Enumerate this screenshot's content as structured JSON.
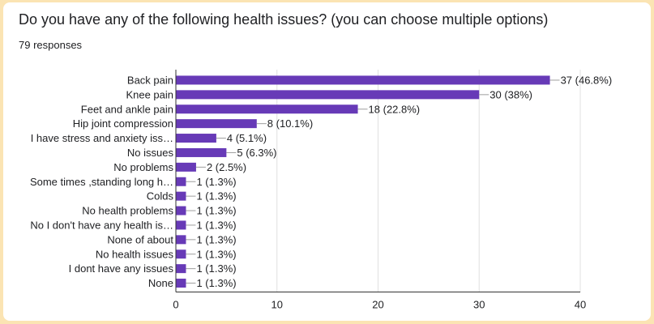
{
  "header": {
    "title": "Do you have any of the following health issues? (you can choose multiple options)",
    "responses": "79 responses"
  },
  "colors": {
    "bar": "#673ab7",
    "background": "#fbe4b3",
    "gridline": "#e0e0e0",
    "axis": "#333333"
  },
  "chart_data": {
    "type": "bar",
    "orientation": "horizontal",
    "title": "Do you have any of the following health issues? (you can choose multiple options)",
    "subtitle": "79 responses",
    "categories": [
      "Back pain",
      "Knee pain",
      "Feet and ankle pain",
      "Hip joint compression",
      "I have stress and anxiety iss…",
      "No issues",
      "No problems",
      "Some times ,standing long h…",
      "Colds",
      "No health problems",
      "No I don't have any health is…",
      "None of about",
      "No health issues",
      "I dont have any issues",
      "None"
    ],
    "values": [
      37,
      30,
      18,
      8,
      4,
      5,
      2,
      1,
      1,
      1,
      1,
      1,
      1,
      1,
      1
    ],
    "value_labels": [
      "37 (46.8%)",
      "30 (38%)",
      "18 (22.8%)",
      "8 (10.1%)",
      "4 (5.1%)",
      "5 (6.3%)",
      "2 (2.5%)",
      "1 (1.3%)",
      "1 (1.3%)",
      "1 (1.3%)",
      "1 (1.3%)",
      "1 (1.3%)",
      "1 (1.3%)",
      "1 (1.3%)",
      "1 (1.3%)"
    ],
    "xlim": [
      0,
      40
    ],
    "xticks": [
      "0",
      "10",
      "20",
      "30",
      "40"
    ],
    "grid": true,
    "legend": "none"
  }
}
